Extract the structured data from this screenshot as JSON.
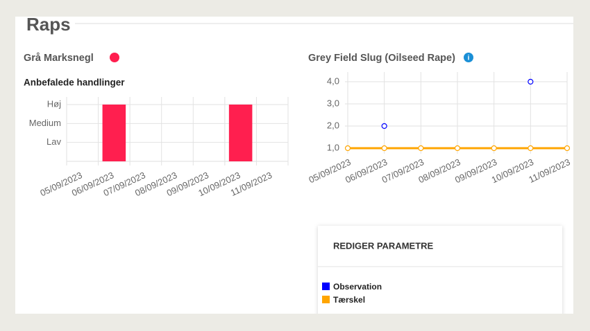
{
  "section_title": "Raps",
  "chart_data": [
    {
      "type": "bar",
      "title": "Grå Marksnegl",
      "title_dot_color": "#ff1f4f",
      "subtitle": "Anbefalede handlinger",
      "categories": [
        "05/09/2023",
        "06/09/2023",
        "07/09/2023",
        "08/09/2023",
        "09/09/2023",
        "10/09/2023",
        "11/09/2023"
      ],
      "values": [
        null,
        3,
        null,
        null,
        null,
        3,
        null
      ],
      "color": "#ff1f4f",
      "ylim": [
        0,
        3
      ],
      "yticks": [
        {
          "value": 1,
          "label": "Lav"
        },
        {
          "value": 2,
          "label": "Medium"
        },
        {
          "value": 3,
          "label": "Høj"
        }
      ],
      "grid": true
    },
    {
      "type": "line",
      "title": "Grey Field Slug (Oilseed Rape)",
      "categories": [
        "05/09/2023",
        "06/09/2023",
        "07/09/2023",
        "08/09/2023",
        "09/09/2023",
        "10/09/2023",
        "11/09/2023"
      ],
      "series": [
        {
          "name": "Observation",
          "color": "#0000ff",
          "line": false,
          "values": [
            null,
            2,
            null,
            null,
            null,
            4,
            null
          ]
        },
        {
          "name": "Tærskel",
          "color": "#ffa500",
          "line": true,
          "values": [
            1,
            1,
            1,
            1,
            1,
            1,
            1
          ]
        }
      ],
      "ylim": [
        1,
        4
      ],
      "yticks": [
        {
          "value": 1,
          "label": "1,0"
        },
        {
          "value": 2,
          "label": "2,0"
        },
        {
          "value": 3,
          "label": "3,0"
        },
        {
          "value": 4,
          "label": "4,0"
        }
      ],
      "grid": true
    }
  ],
  "panel": {
    "title": "REDIGER PARAMETRE"
  }
}
